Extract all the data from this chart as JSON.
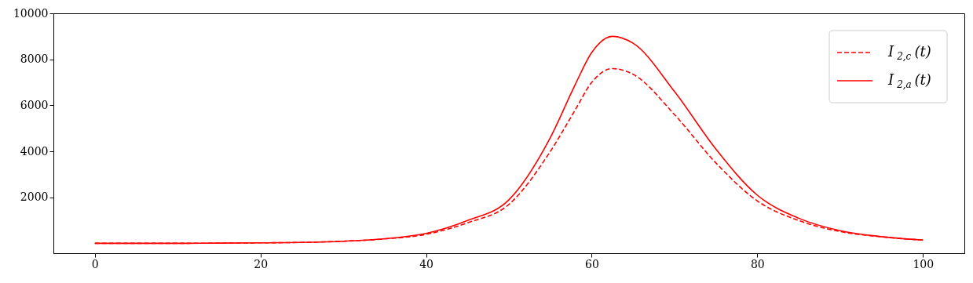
{
  "chart_data": {
    "type": "line",
    "x": [
      0,
      5,
      10,
      15,
      20,
      25,
      30,
      35,
      40,
      45,
      50,
      55,
      58,
      60,
      62.5,
      65,
      70,
      75,
      80,
      85,
      90,
      95,
      100
    ],
    "series": [
      {
        "name": "I$_{2,c}$(t)",
        "color": "#ff0000",
        "line_style": "dashed",
        "values": [
          10,
          10,
          10,
          20,
          30,
          50,
          100,
          200,
          400,
          900,
          1700,
          4000,
          5800,
          7000,
          7600,
          7350,
          5600,
          3500,
          1850,
          1000,
          520,
          290,
          150
        ]
      },
      {
        "name": "I$_{2,a}$(t)",
        "color": "#ff0000",
        "line_style": "solid",
        "values": [
          10,
          10,
          10,
          20,
          30,
          50,
          100,
          210,
          440,
          1000,
          1900,
          4600,
          6900,
          8300,
          9000,
          8700,
          6600,
          4100,
          2100,
          1100,
          560,
          300,
          150
        ]
      }
    ],
    "xlim": [
      -5,
      105
    ],
    "xticks": [
      0,
      20,
      40,
      60,
      80,
      100
    ],
    "ylim": [
      -420,
      10000
    ],
    "yticks": [
      2000,
      4000,
      6000,
      8000,
      10000
    ],
    "grid": false,
    "legend": "top right",
    "marker": "none"
  }
}
